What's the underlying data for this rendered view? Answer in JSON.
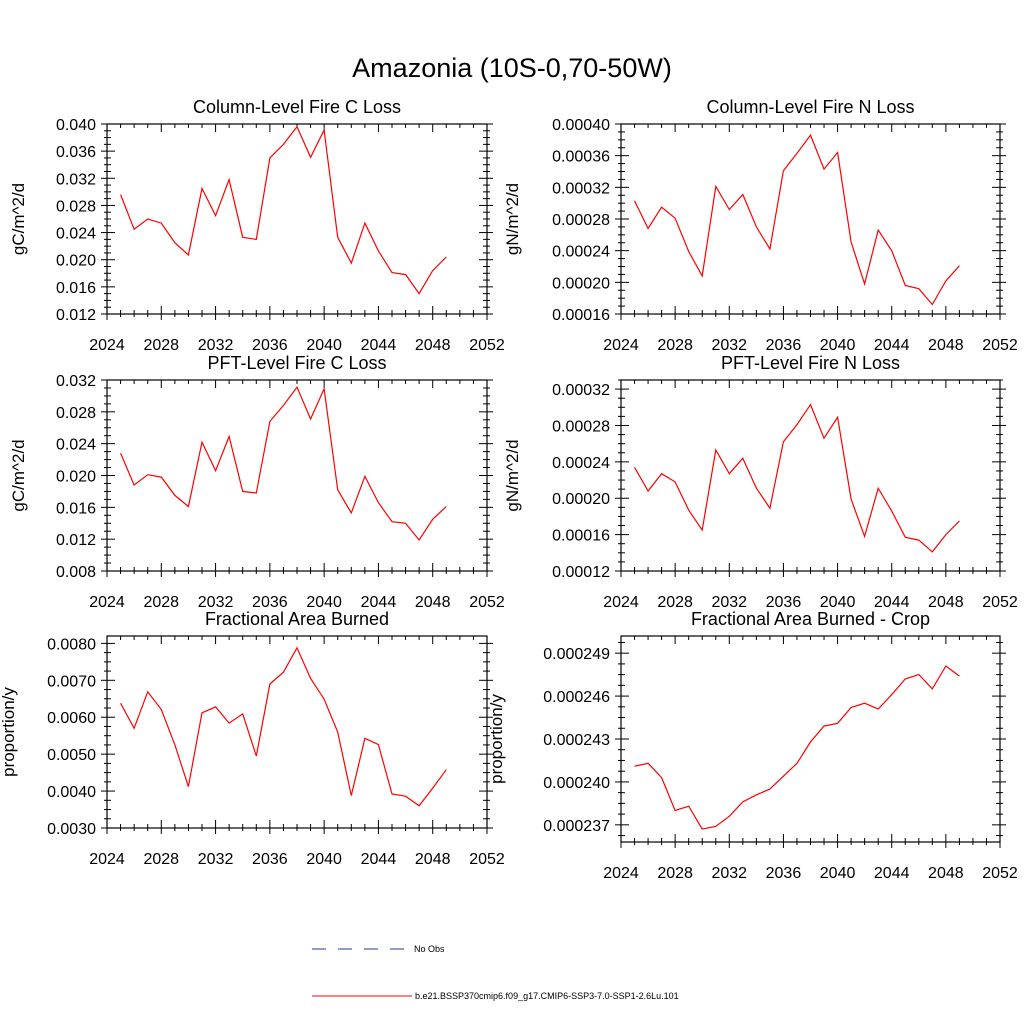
{
  "figure": {
    "title": "Amazonia (10S-0,70-50W)"
  },
  "colors": {
    "series_line": "#ff0000",
    "obs_line": "#2a3a9e",
    "axis": "#000000"
  },
  "legend": {
    "obs_label": "No Obs",
    "model_label": "b.e21.BSSP370cmip6.f09_g17.CMIP6-SSP3-7.0-SSP1-2.6Lu.101",
    "placement": "bottom-center"
  },
  "chart_data": [
    {
      "type": "line",
      "title": "Column-Level Fire C Loss",
      "xlabel": "",
      "ylabel": "gC/m^2/d",
      "xlim": [
        2024,
        2052
      ],
      "ylim": [
        0.012,
        0.04
      ],
      "xticks": [
        "2024",
        "2028",
        "2032",
        "2036",
        "2040",
        "2044",
        "2048",
        "2052"
      ],
      "yticks": [
        "0.012",
        "0.016",
        "0.020",
        "0.024",
        "0.028",
        "0.032",
        "0.036",
        "0.040"
      ],
      "x": [
        2025,
        2026,
        2027,
        2028,
        2029,
        2030,
        2031,
        2032,
        2033,
        2034,
        2035,
        2036,
        2037,
        2038,
        2039,
        2040,
        2041,
        2042,
        2043,
        2044,
        2045,
        2046,
        2047,
        2048,
        2049
      ],
      "series": [
        {
          "values": [
            0.0296,
            0.0245,
            0.026,
            0.0254,
            0.0225,
            0.0207,
            0.0305,
            0.0265,
            0.0318,
            0.0233,
            0.023,
            0.035,
            0.037,
            0.0396,
            0.0351,
            0.0391,
            0.0233,
            0.0195,
            0.0254,
            0.0213,
            0.0181,
            0.0178,
            0.015,
            0.0184,
            0.0204
          ]
        }
      ]
    },
    {
      "type": "line",
      "title": "Column-Level Fire N Loss",
      "xlabel": "",
      "ylabel": "gN/m^2/d",
      "xlim": [
        2024,
        2052
      ],
      "ylim": [
        0.00016,
        0.0004
      ],
      "xticks": [
        "2024",
        "2028",
        "2032",
        "2036",
        "2040",
        "2044",
        "2048",
        "2052"
      ],
      "yticks": [
        "0.00016",
        "0.00020",
        "0.00024",
        "0.00028",
        "0.00032",
        "0.00036",
        "0.00040"
      ],
      "x": [
        2025,
        2026,
        2027,
        2028,
        2029,
        2030,
        2031,
        2032,
        2033,
        2034,
        2035,
        2036,
        2037,
        2038,
        2039,
        2040,
        2041,
        2042,
        2043,
        2044,
        2045,
        2046,
        2047,
        2048,
        2049
      ],
      "series": [
        {
          "values": [
            0.000303,
            0.000268,
            0.000295,
            0.000281,
            0.000239,
            0.000208,
            0.000321,
            0.000292,
            0.000311,
            0.00027,
            0.000242,
            0.000341,
            0.000363,
            0.000386,
            0.000343,
            0.000364,
            0.000251,
            0.000198,
            0.000266,
            0.00024,
            0.000196,
            0.000192,
            0.000172,
            0.000202,
            0.000221
          ]
        }
      ]
    },
    {
      "type": "line",
      "title": "PFT-Level Fire C Loss",
      "xlabel": "",
      "ylabel": "gC/m^2/d",
      "xlim": [
        2024,
        2052
      ],
      "ylim": [
        0.008,
        0.032
      ],
      "xticks": [
        "2024",
        "2028",
        "2032",
        "2036",
        "2040",
        "2044",
        "2048",
        "2052"
      ],
      "yticks": [
        "0.008",
        "0.012",
        "0.016",
        "0.020",
        "0.024",
        "0.028",
        "0.032"
      ],
      "x": [
        2025,
        2026,
        2027,
        2028,
        2029,
        2030,
        2031,
        2032,
        2033,
        2034,
        2035,
        2036,
        2037,
        2038,
        2039,
        2040,
        2041,
        2042,
        2043,
        2044,
        2045,
        2046,
        2047,
        2048,
        2049
      ],
      "series": [
        {
          "values": [
            0.0228,
            0.0188,
            0.0201,
            0.0198,
            0.0175,
            0.0161,
            0.0242,
            0.0206,
            0.0249,
            0.018,
            0.0178,
            0.0268,
            0.0288,
            0.0311,
            0.0271,
            0.0309,
            0.0182,
            0.0153,
            0.0199,
            0.0166,
            0.0142,
            0.014,
            0.0119,
            0.0145,
            0.0161
          ]
        }
      ]
    },
    {
      "type": "line",
      "title": "PFT-Level Fire N Loss",
      "xlabel": "",
      "ylabel": "gN/m^2/d",
      "xlim": [
        2024,
        2052
      ],
      "ylim": [
        0.00012,
        0.00033
      ],
      "xticks": [
        "2024",
        "2028",
        "2032",
        "2036",
        "2040",
        "2044",
        "2048",
        "2052"
      ],
      "yticks": [
        "0.00012",
        "0.00016",
        "0.00020",
        "0.00024",
        "0.00028",
        "0.00032"
      ],
      "x": [
        2025,
        2026,
        2027,
        2028,
        2029,
        2030,
        2031,
        2032,
        2033,
        2034,
        2035,
        2036,
        2037,
        2038,
        2039,
        2040,
        2041,
        2042,
        2043,
        2044,
        2045,
        2046,
        2047,
        2048,
        2049
      ],
      "series": [
        {
          "values": [
            0.000234,
            0.000208,
            0.000227,
            0.000218,
            0.000187,
            0.000165,
            0.000253,
            0.000227,
            0.000244,
            0.000211,
            0.000189,
            0.000262,
            0.000281,
            0.000303,
            0.000266,
            0.000289,
            0.000199,
            0.000158,
            0.000211,
            0.000186,
            0.000157,
            0.000154,
            0.000141,
            0.00016,
            0.000175
          ]
        }
      ]
    },
    {
      "type": "line",
      "title": "Fractional Area Burned",
      "xlabel": "",
      "ylabel": "proportion/y",
      "xlim": [
        2024,
        2052
      ],
      "ylim": [
        0.003,
        0.0082
      ],
      "xticks": [
        "2024",
        "2028",
        "2032",
        "2036",
        "2040",
        "2044",
        "2048",
        "2052"
      ],
      "yticks": [
        "0.0030",
        "0.0040",
        "0.0050",
        "0.0060",
        "0.0070",
        "0.0080"
      ],
      "x": [
        2025,
        2026,
        2027,
        2028,
        2029,
        2030,
        2031,
        2032,
        2033,
        2034,
        2035,
        2036,
        2037,
        2038,
        2039,
        2040,
        2041,
        2042,
        2043,
        2044,
        2045,
        2046,
        2047,
        2048,
        2049
      ],
      "series": [
        {
          "values": [
            0.00638,
            0.0057,
            0.00669,
            0.00621,
            0.00525,
            0.00412,
            0.00612,
            0.00628,
            0.00584,
            0.00609,
            0.00495,
            0.0069,
            0.00722,
            0.00788,
            0.00705,
            0.00649,
            0.0056,
            0.00388,
            0.00543,
            0.00526,
            0.00392,
            0.00386,
            0.0036,
            0.00408,
            0.00458
          ]
        }
      ]
    },
    {
      "type": "line",
      "title": "Fractional Area Burned - Crop",
      "xlabel": "",
      "ylabel": "proportion/y",
      "xlim": [
        2024,
        2052
      ],
      "ylim": [
        0.0002358,
        0.0002502
      ],
      "xticks": [
        "2024",
        "2028",
        "2032",
        "2036",
        "2040",
        "2044",
        "2048",
        "2052"
      ],
      "yticks": [
        "0.000237",
        "0.000240",
        "0.000243",
        "0.000246",
        "0.000249"
      ],
      "x": [
        2025,
        2026,
        2027,
        2028,
        2029,
        2030,
        2031,
        2032,
        2033,
        2034,
        2035,
        2036,
        2037,
        2038,
        2039,
        2040,
        2041,
        2042,
        2043,
        2044,
        2045,
        2046,
        2047,
        2048,
        2049
      ],
      "series": [
        {
          "values": [
            0.0002411,
            0.0002413,
            0.0002403,
            0.000238,
            0.0002383,
            0.0002367,
            0.0002369,
            0.0002376,
            0.0002386,
            0.0002391,
            0.0002395,
            0.0002404,
            0.0002413,
            0.0002428,
            0.0002439,
            0.0002441,
            0.0002452,
            0.0002455,
            0.0002451,
            0.0002461,
            0.0002472,
            0.0002475,
            0.0002465,
            0.0002481,
            0.0002474
          ]
        }
      ]
    }
  ]
}
